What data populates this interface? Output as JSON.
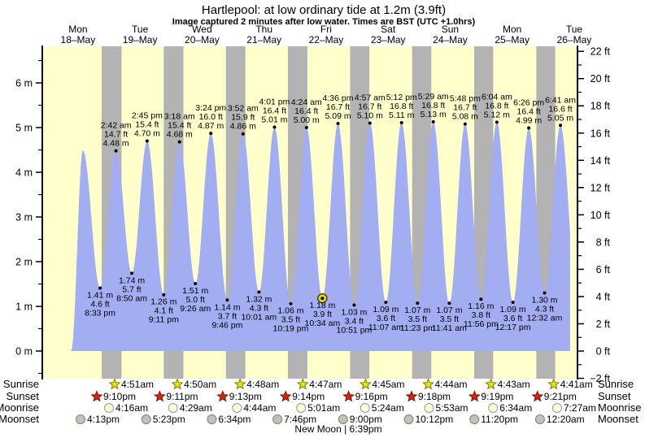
{
  "title": "Hartlepool: at low  ordinary tide at 1.2m (3.9ft)",
  "subtitle": "Image captured 2 minutes after low water. Times are BST (UTC +1.0hrs)",
  "colors": {
    "plot_bg": "#ffffcc",
    "night_band": "#b3b3b3",
    "tide_fill": "#a2adf2",
    "day_label": "#ff0000",
    "axis": "#000000",
    "current_marker_fill": "#e8df00",
    "current_marker_ring": "#3c3c00",
    "sunrise_star_fill": "#e6e600",
    "sunrise_star_stroke": "#7a7a00",
    "sunset_star_fill": "#dd2211",
    "sunset_star_stroke": "#7a0e00",
    "moonrise_circle_fill": "#ffffdd",
    "moonrise_circle_stroke": "#999988",
    "moonset_circle_fill": "#c2c2b8",
    "moonset_circle_stroke": "#808078"
  },
  "chart_data": {
    "type": "area",
    "x_axis": {
      "days": [
        {
          "dow": "Mon",
          "date": "18-May"
        },
        {
          "dow": "Tue",
          "date": "19-May"
        },
        {
          "dow": "Wed",
          "date": "20-May"
        },
        {
          "dow": "Thu",
          "date": "21-May"
        },
        {
          "dow": "Fri",
          "date": "22-May"
        },
        {
          "dow": "Sat",
          "date": "23-May"
        },
        {
          "dow": "Sun",
          "date": "24-May"
        },
        {
          "dow": "Mon",
          "date": "25-May"
        },
        {
          "dow": "Tue",
          "date": "26-May"
        }
      ]
    },
    "y_axis_left": {
      "unit": "m",
      "min": 0,
      "max": 6,
      "major_step": 1,
      "minor_step": 0.5
    },
    "y_axis_right": {
      "unit": "ft",
      "min": -2,
      "max": 22,
      "major_step": 2,
      "minor_step": 1
    },
    "events": [
      {
        "type": "high",
        "t": 13.9,
        "height_m": 4.49,
        "annotated": false
      },
      {
        "type": "low",
        "t": 20.55,
        "height_m": 1.41,
        "m": "1.41 m",
        "ft": "4.6 ft",
        "time": "8:33 pm",
        "annotated": true
      },
      {
        "type": "high",
        "t": 26.7,
        "height_m": 4.48,
        "m": "4.48 m",
        "ft": "14.7 ft",
        "time": "2:42 am",
        "annotated": true
      },
      {
        "type": "low",
        "t": 32.83,
        "height_m": 1.74,
        "m": "1.74 m",
        "ft": "5.7 ft",
        "time": "8:50 am",
        "annotated": true
      },
      {
        "type": "high",
        "t": 38.75,
        "height_m": 4.7,
        "m": "4.70 m",
        "ft": "15.4 ft",
        "time": "2:45 pm",
        "annotated": true
      },
      {
        "type": "low",
        "t": 45.18,
        "height_m": 1.26,
        "m": "1.26 m",
        "ft": "4.1 ft",
        "time": "9:11 pm",
        "annotated": true
      },
      {
        "type": "high",
        "t": 51.3,
        "height_m": 4.68,
        "m": "4.68 m",
        "ft": "15.4 ft",
        "time": "3:18 am",
        "annotated": true
      },
      {
        "type": "low",
        "t": 57.43,
        "height_m": 1.51,
        "m": "1.51 m",
        "ft": "5.0 ft",
        "time": "9:26 am",
        "annotated": true
      },
      {
        "type": "high",
        "t": 63.4,
        "height_m": 4.87,
        "m": "4.87 m",
        "ft": "16.0 ft",
        "time": "3:24 pm",
        "annotated": true
      },
      {
        "type": "low",
        "t": 69.77,
        "height_m": 1.14,
        "m": "1.14 m",
        "ft": "3.7 ft",
        "time": "9:46 pm",
        "annotated": true
      },
      {
        "type": "high",
        "t": 75.87,
        "height_m": 4.86,
        "m": "4.86 m",
        "ft": "15.9 ft",
        "time": "3:52 am",
        "annotated": true
      },
      {
        "type": "low",
        "t": 82.02,
        "height_m": 1.32,
        "m": "1.32 m",
        "ft": "4.3 ft",
        "time": "10:01 am",
        "annotated": true
      },
      {
        "type": "high",
        "t": 88.02,
        "height_m": 5.01,
        "m": "5.01 m",
        "ft": "16.4 ft",
        "time": "4:01 pm",
        "annotated": true
      },
      {
        "type": "low",
        "t": 94.32,
        "height_m": 1.06,
        "m": "1.06 m",
        "ft": "3.5 ft",
        "time": "10:19 pm",
        "annotated": true
      },
      {
        "type": "high",
        "t": 100.4,
        "height_m": 5.0,
        "m": "5.00 m",
        "ft": "16.4 ft",
        "time": "4:24 am",
        "annotated": true
      },
      {
        "type": "low",
        "t": 106.57,
        "height_m": 1.18,
        "m": "1.18 m",
        "ft": "3.9 ft",
        "time": "10:34 am",
        "annotated": true,
        "current": true
      },
      {
        "type": "high",
        "t": 112.6,
        "height_m": 5.09,
        "m": "5.09 m",
        "ft": "16.7 ft",
        "time": "4:36 pm",
        "annotated": true
      },
      {
        "type": "low",
        "t": 118.85,
        "height_m": 1.03,
        "m": "1.03 m",
        "ft": "3.4 ft",
        "time": "10:51 pm",
        "annotated": true
      },
      {
        "type": "high",
        "t": 124.95,
        "height_m": 5.1,
        "m": "5.10 m",
        "ft": "16.7 ft",
        "time": "4:57 am",
        "annotated": true
      },
      {
        "type": "low",
        "t": 131.12,
        "height_m": 1.09,
        "m": "1.09 m",
        "ft": "3.6 ft",
        "time": "11:07 am",
        "annotated": true
      },
      {
        "type": "high",
        "t": 137.2,
        "height_m": 5.11,
        "m": "5.11 m",
        "ft": "16.8 ft",
        "time": "5:12 pm",
        "annotated": true
      },
      {
        "type": "low",
        "t": 143.38,
        "height_m": 1.07,
        "m": "1.07 m",
        "ft": "3.5 ft",
        "time": "11:23 pm",
        "annotated": true
      },
      {
        "type": "high",
        "t": 149.48,
        "height_m": 5.13,
        "m": "5.13 m",
        "ft": "16.8 ft",
        "time": "5:29 am",
        "annotated": true
      },
      {
        "type": "low",
        "t": 155.68,
        "height_m": 1.07,
        "m": "1.07 m",
        "ft": "3.5 ft",
        "time": "11:41 am",
        "annotated": true
      },
      {
        "type": "high",
        "t": 161.8,
        "height_m": 5.08,
        "m": "5.08 m",
        "ft": "16.7 ft",
        "time": "5:48 pm",
        "annotated": true
      },
      {
        "type": "low",
        "t": 167.93,
        "height_m": 1.16,
        "m": "1.16 m",
        "ft": "3.8 ft",
        "time": "11:56 pm",
        "annotated": true
      },
      {
        "type": "high",
        "t": 174.07,
        "height_m": 5.12,
        "m": "5.12 m",
        "ft": "16.8 ft",
        "time": "6:04 am",
        "annotated": true
      },
      {
        "type": "low",
        "t": 180.28,
        "height_m": 1.09,
        "m": "1.09 m",
        "ft": "3.6 ft",
        "time": "12:17 pm",
        "annotated": true
      },
      {
        "type": "high",
        "t": 186.43,
        "height_m": 4.99,
        "m": "4.99 m",
        "ft": "16.4 ft",
        "time": "6:26 pm",
        "annotated": true
      },
      {
        "type": "low",
        "t": 192.53,
        "height_m": 1.3,
        "m": "1.30 m",
        "ft": "4.3 ft",
        "time": "12:32 am",
        "annotated": true
      },
      {
        "type": "high",
        "t": 198.68,
        "height_m": 5.05,
        "m": "5.05 m",
        "ft": "16.6 ft",
        "time": "6:41 am",
        "annotated": true
      }
    ]
  },
  "almanac": {
    "rows": [
      {
        "id": "sunrise",
        "label": "Sunrise",
        "icon": "sunrise-star-icon",
        "times": [
          "4:51am",
          "4:50am",
          "4:48am",
          "4:47am",
          "4:45am",
          "4:44am",
          "4:43am",
          "4:41am"
        ]
      },
      {
        "id": "sunset",
        "label": "Sunset",
        "icon": "sunset-star-icon",
        "times": [
          "9:10pm",
          "9:11pm",
          "9:13pm",
          "9:14pm",
          "9:16pm",
          "9:18pm",
          "9:19pm",
          "9:21pm"
        ]
      },
      {
        "id": "moonrise",
        "label": "Moonrise",
        "icon": "moonrise-circle-icon",
        "times": [
          "4:16am",
          "4:29am",
          "4:44am",
          "5:01am",
          "5:24am",
          "5:53am",
          "6:34am",
          "7:27am"
        ]
      },
      {
        "id": "moonset",
        "label": "Moonset",
        "icon": "moonset-circle-icon",
        "times": [
          "4:13pm",
          "5:23pm",
          "6:34pm",
          "7:46pm",
          "9:00pm",
          "10:12pm",
          "11:20pm",
          "12:20am"
        ]
      }
    ],
    "moon_phase": "New Moon | 6:39pm"
  }
}
